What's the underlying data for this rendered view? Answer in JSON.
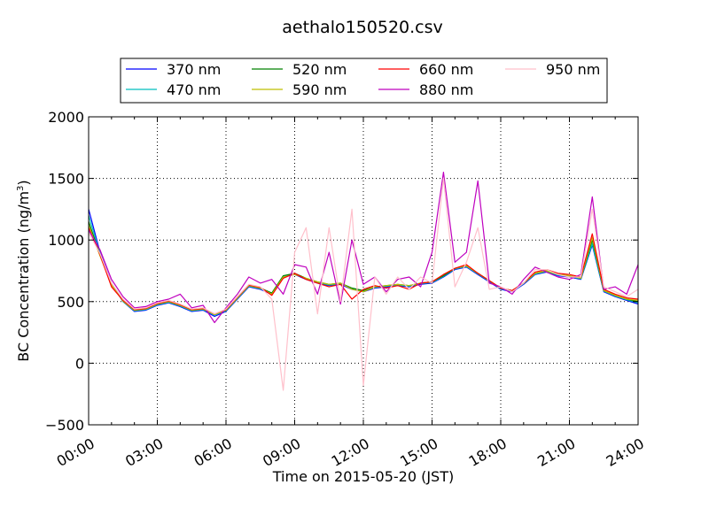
{
  "chart_data": {
    "type": "line",
    "title": "aethalo150520.csv",
    "xlabel": "Time on 2015-05-20 (JST)",
    "ylabel": "BC Concentration (ng/m³)",
    "ylabel_main": "BC Concentration (ng/m",
    "ylabel_sup": "3",
    "ylabel_tail": ")",
    "xlim_hours": [
      0,
      24
    ],
    "ylim": [
      -500,
      2000
    ],
    "x_tick_labels": [
      "00:00",
      "03:00",
      "06:00",
      "09:00",
      "12:00",
      "15:00",
      "18:00",
      "21:00",
      "24:00"
    ],
    "y_tick_labels": [
      "−500",
      "0",
      "500",
      "1000",
      "1500",
      "2000"
    ],
    "grid": true,
    "legend_position": "top-center",
    "x_hours": [
      0.0,
      0.5,
      1.0,
      1.5,
      2.0,
      2.5,
      3.0,
      3.5,
      4.0,
      4.5,
      5.0,
      5.5,
      6.0,
      6.5,
      7.0,
      7.5,
      8.0,
      8.5,
      9.0,
      9.5,
      10.0,
      10.5,
      11.0,
      11.5,
      12.0,
      12.5,
      13.0,
      13.5,
      14.0,
      14.5,
      15.0,
      15.5,
      16.0,
      16.5,
      17.0,
      17.5,
      18.0,
      18.5,
      19.0,
      19.5,
      20.0,
      20.5,
      21.0,
      21.5,
      22.0,
      22.5,
      23.0,
      23.5,
      24.0
    ],
    "series": [
      {
        "name": "370 nm",
        "color": "#0000ff",
        "values": [
          1250,
          900,
          650,
          500,
          420,
          430,
          470,
          490,
          460,
          420,
          430,
          380,
          420,
          520,
          620,
          600,
          560,
          700,
          720,
          680,
          650,
          630,
          640,
          600,
          580,
          610,
          620,
          630,
          620,
          640,
          650,
          700,
          760,
          780,
          720,
          660,
          600,
          580,
          640,
          720,
          740,
          710,
          700,
          680,
          960,
          580,
          540,
          510,
          480
        ]
      },
      {
        "name": "470 nm",
        "color": "#00bfbf",
        "values": [
          1200,
          890,
          640,
          500,
          425,
          435,
          475,
          495,
          465,
          425,
          435,
          390,
          425,
          525,
          625,
          605,
          565,
          705,
          725,
          685,
          655,
          635,
          645,
          605,
          585,
          615,
          625,
          635,
          625,
          645,
          655,
          705,
          765,
          785,
          725,
          665,
          605,
          585,
          645,
          725,
          745,
          715,
          705,
          685,
          970,
          585,
          545,
          515,
          490
        ]
      },
      {
        "name": "520 nm",
        "color": "#008000",
        "values": [
          1150,
          880,
          640,
          505,
          430,
          440,
          480,
          500,
          470,
          430,
          440,
          395,
          430,
          530,
          630,
          610,
          570,
          710,
          730,
          690,
          660,
          640,
          650,
          610,
          590,
          620,
          630,
          640,
          630,
          650,
          660,
          710,
          770,
          790,
          730,
          670,
          610,
          590,
          650,
          730,
          750,
          720,
          710,
          690,
          1000,
          590,
          550,
          520,
          500
        ]
      },
      {
        "name": "590 nm",
        "color": "#bfbf00",
        "values": [
          1120,
          870,
          635,
          505,
          430,
          440,
          480,
          500,
          470,
          430,
          440,
          395,
          430,
          530,
          630,
          610,
          560,
          700,
          720,
          690,
          660,
          640,
          650,
          600,
          580,
          620,
          630,
          640,
          630,
          650,
          660,
          720,
          770,
          790,
          730,
          670,
          610,
          590,
          650,
          730,
          750,
          720,
          710,
          690,
          1020,
          590,
          550,
          520,
          510
        ]
      },
      {
        "name": "660 nm",
        "color": "#ff0000",
        "values": [
          1100,
          880,
          620,
          510,
          435,
          445,
          485,
          505,
          475,
          435,
          445,
          400,
          435,
          535,
          635,
          615,
          550,
          690,
          730,
          680,
          650,
          620,
          640,
          520,
          600,
          630,
          610,
          630,
          600,
          650,
          660,
          720,
          770,
          800,
          730,
          670,
          610,
          590,
          650,
          740,
          760,
          730,
          720,
          700,
          1050,
          600,
          560,
          530,
          520
        ]
      },
      {
        "name": "880 nm",
        "color": "#bf00bf",
        "values": [
          1080,
          920,
          680,
          540,
          450,
          460,
          500,
          520,
          560,
          450,
          470,
          330,
          450,
          560,
          700,
          650,
          680,
          560,
          800,
          780,
          560,
          900,
          480,
          1000,
          640,
          700,
          580,
          680,
          700,
          620,
          900,
          1550,
          820,
          900,
          1480,
          650,
          620,
          560,
          680,
          780,
          740,
          700,
          680,
          720,
          1350,
          600,
          620,
          560,
          800
        ]
      },
      {
        "name": "950 nm",
        "color": "#ffc0cb",
        "values": [
          1060,
          890,
          650,
          520,
          440,
          450,
          490,
          510,
          480,
          440,
          450,
          400,
          440,
          540,
          640,
          620,
          520,
          -220,
          900,
          1100,
          400,
          1100,
          500,
          1250,
          -180,
          700,
          560,
          700,
          600,
          700,
          650,
          1500,
          620,
          820,
          1100,
          600,
          620,
          580,
          650,
          760,
          760,
          720,
          700,
          700,
          1250,
          620,
          580,
          540,
          600
        ]
      }
    ]
  }
}
